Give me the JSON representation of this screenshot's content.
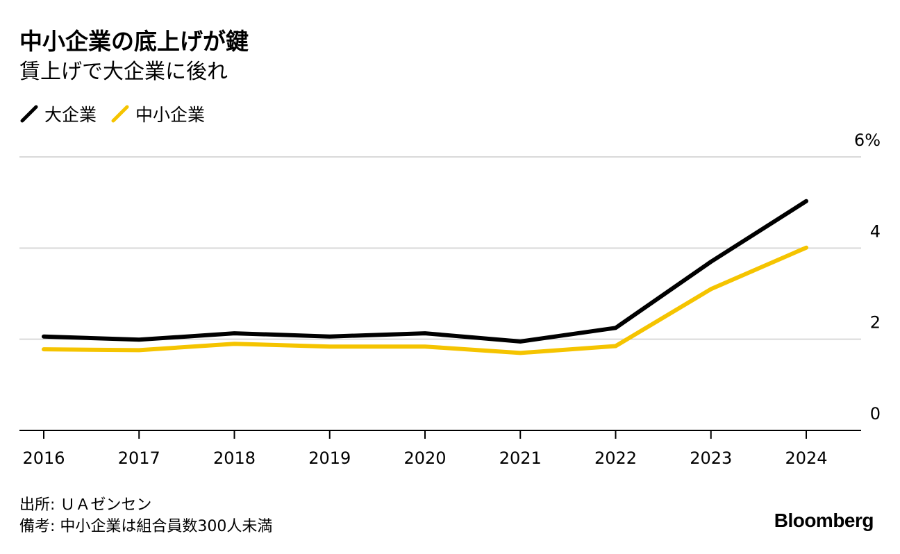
{
  "header": {
    "title": "中小企業の底上げが鍵",
    "subtitle": "賃上げで大企業に後れ"
  },
  "legend": [
    {
      "label": "大企業",
      "color": "#000000"
    },
    {
      "label": "中小企業",
      "color": "#f5c400"
    }
  ],
  "chart_data": {
    "type": "line",
    "x": [
      "2016",
      "2017",
      "2018",
      "2019",
      "2020",
      "2021",
      "2022",
      "2023",
      "2024"
    ],
    "series": [
      {
        "name": "大企業",
        "color": "#000000",
        "values": [
          2.06,
          1.99,
          2.13,
          2.06,
          2.13,
          1.95,
          2.25,
          3.7,
          5.03
        ]
      },
      {
        "name": "中小企業",
        "color": "#f5c400",
        "values": [
          1.78,
          1.76,
          1.9,
          1.84,
          1.84,
          1.7,
          1.85,
          3.1,
          4.01
        ]
      }
    ],
    "ylim": [
      0,
      6
    ],
    "yticks": [
      0,
      2,
      4,
      6
    ],
    "ytick_labels": [
      "0",
      "2",
      "4",
      "6%"
    ],
    "grid": true,
    "legend_position": "top-left"
  },
  "footer": {
    "source": "出所: ＵＡゼンセン",
    "note": "備考: 中小企業は組合員数300人未満"
  },
  "brand": {
    "logo_text": "Bloomberg"
  }
}
